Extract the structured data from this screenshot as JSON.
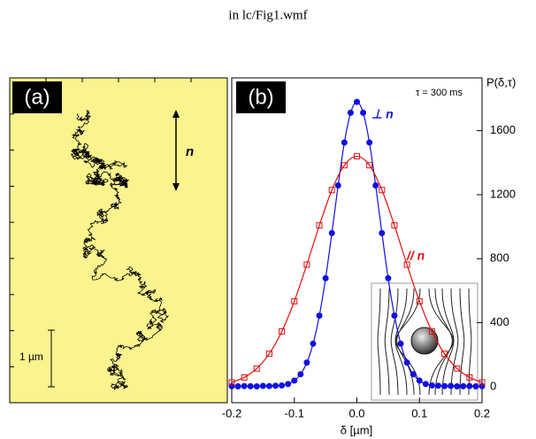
{
  "header": "in lc/Fig1.wmf",
  "panel_a": {
    "label": "(a)",
    "arrow_label": "n",
    "scale_label": "1 µm"
  },
  "chart_data": {
    "type": "scatter",
    "label": "(b)",
    "annotation": "τ = 300 ms",
    "ylabel": "P(δ,τ)",
    "xlabel": "δ [µm]",
    "xlim": [
      -0.2,
      0.2
    ],
    "xticks": [
      -0.2,
      -0.1,
      {
        "value": 0,
        "label": "0.0"
      },
      0.1,
      0.2
    ],
    "ylim": [
      -100,
      1930
    ],
    "yticks": [
      0,
      400,
      800,
      1200,
      1600
    ],
    "series": [
      {
        "name": "⊥ n",
        "color": "#1010e0",
        "marker": "circle",
        "x": [
          -0.2,
          -0.19,
          -0.18,
          -0.17,
          -0.16,
          -0.15,
          -0.14,
          -0.13,
          -0.12,
          -0.11,
          -0.1,
          -0.09,
          -0.08,
          -0.07,
          -0.06,
          -0.05,
          -0.04,
          -0.03,
          -0.02,
          -0.01,
          0,
          0.01,
          0.02,
          0.03,
          0.04,
          0.05,
          0.06,
          0.07,
          0.08,
          0.09,
          0.1,
          0.11,
          0.12,
          0.13,
          0.14,
          0.15,
          0.16,
          0.17,
          0.18,
          0.19,
          0.2
        ],
        "values": [
          3,
          2,
          4,
          3,
          2,
          5,
          4,
          6,
          8,
          17,
          38,
          78,
          151,
          269,
          444,
          678,
          960,
          1258,
          1526,
          1712,
          1780,
          1712,
          1526,
          1258,
          960,
          678,
          444,
          269,
          151,
          78,
          38,
          17,
          8,
          6,
          4,
          5,
          2,
          3,
          4,
          2,
          3
        ]
      },
      {
        "name": "// n",
        "color": "#e01010",
        "marker": "square",
        "x": [
          -0.2,
          -0.18,
          -0.16,
          -0.14,
          -0.12,
          -0.1,
          -0.08,
          -0.06,
          -0.04,
          -0.02,
          0,
          0.02,
          0.04,
          0.06,
          0.08,
          0.1,
          0.12,
          0.14,
          0.16,
          0.18,
          0.2
        ],
        "values": [
          27,
          58,
          114,
          206,
          345,
          534,
          763,
          1008,
          1229,
          1384,
          1440,
          1384,
          1229,
          1008,
          763,
          534,
          345,
          206,
          114,
          58,
          27
        ]
      }
    ]
  }
}
